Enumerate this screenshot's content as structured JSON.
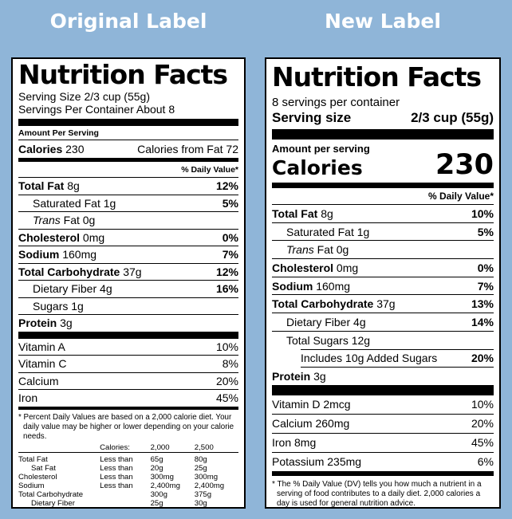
{
  "headings": {
    "original": "Original Label",
    "new": "New Label"
  },
  "original": {
    "title": "Nutrition Facts",
    "serving_size": "Serving Size 2/3 cup (55g)",
    "servings_per_container": "Servings Per Container About 8",
    "amount_per_serving": "Amount Per Serving",
    "calories_label": "Calories",
    "calories_value": "230",
    "calories_from_fat": "Calories from Fat 72",
    "daily_value_header": "% Daily Value*",
    "nutrients": [
      {
        "name": "Total Fat",
        "amount": "8g",
        "dv": "12%"
      },
      {
        "name": "Saturated Fat",
        "amount": "1g",
        "dv": "5%"
      },
      {
        "name": "Trans",
        "amount": "Fat 0g",
        "dv": ""
      },
      {
        "name": "Cholesterol",
        "amount": "0mg",
        "dv": "0%"
      },
      {
        "name": "Sodium",
        "amount": "160mg",
        "dv": "7%"
      },
      {
        "name": "Total Carbohydrate",
        "amount": "37g",
        "dv": "12%"
      },
      {
        "name": "Dietary Fiber",
        "amount": "4g",
        "dv": "16%"
      },
      {
        "name": "Sugars",
        "amount": "1g",
        "dv": ""
      },
      {
        "name": "Protein",
        "amount": "3g",
        "dv": ""
      }
    ],
    "vitamins": [
      {
        "name": "Vitamin A",
        "dv": "10%"
      },
      {
        "name": "Vitamin C",
        "dv": "8%"
      },
      {
        "name": "Calcium",
        "dv": "20%"
      },
      {
        "name": "Iron",
        "dv": "45%"
      }
    ],
    "footnote": "* Percent Daily Values are based on a 2,000 calorie diet. Your daily value may be higher or lower depending on your calorie needs.",
    "footnote_table": {
      "header": [
        "Calories:",
        "2,000",
        "2,500"
      ],
      "rows": [
        [
          "Total Fat",
          "Less than",
          "65g",
          "80g"
        ],
        [
          "Sat Fat",
          "Less than",
          "20g",
          "25g"
        ],
        [
          "Cholesterol",
          "Less than",
          "300mg",
          "300mg"
        ],
        [
          "Sodium",
          "Less than",
          "2,400mg",
          "2,400mg"
        ],
        [
          "Total Carbohydrate",
          "",
          "300g",
          "375g"
        ],
        [
          "Dietary Fiber",
          "",
          "25g",
          "30g"
        ]
      ]
    }
  },
  "new": {
    "title": "Nutrition Facts",
    "servings_per_container": "8 servings per container",
    "serving_size_label": "Serving size",
    "serving_size_value": "2/3 cup (55g)",
    "amount_per_serving": "Amount per serving",
    "calories_label": "Calories",
    "calories_value": "230",
    "daily_value_header": "% Daily Value*",
    "nutrients": [
      {
        "name": "Total Fat",
        "amount": "8g",
        "dv": "10%"
      },
      {
        "name": "Saturated Fat",
        "amount": "1g",
        "dv": "5%"
      },
      {
        "name": "Trans",
        "amount": "Fat 0g",
        "dv": ""
      },
      {
        "name": "Cholesterol",
        "amount": "0mg",
        "dv": "0%"
      },
      {
        "name": "Sodium",
        "amount": "160mg",
        "dv": "7%"
      },
      {
        "name": "Total Carbohydrate",
        "amount": "37g",
        "dv": "13%"
      },
      {
        "name": "Dietary Fiber",
        "amount": "4g",
        "dv": "14%"
      },
      {
        "name": "Total Sugars",
        "amount": "12g",
        "dv": ""
      },
      {
        "name": "Includes 10g Added Sugars",
        "amount": "",
        "dv": "20%"
      },
      {
        "name": "Protein",
        "amount": "3g",
        "dv": ""
      }
    ],
    "vitamins": [
      {
        "name": "Vitamin D 2mcg",
        "dv": "10%"
      },
      {
        "name": "Calcium 260mg",
        "dv": "20%"
      },
      {
        "name": "Iron 8mg",
        "dv": "45%"
      },
      {
        "name": "Potassium 235mg",
        "dv": "6%"
      }
    ],
    "footnote": "* The % Daily Value (DV) tells you how much a nutrient in a serving of food contributes to a daily diet. 2,000 calories a day is used for general nutrition advice."
  }
}
